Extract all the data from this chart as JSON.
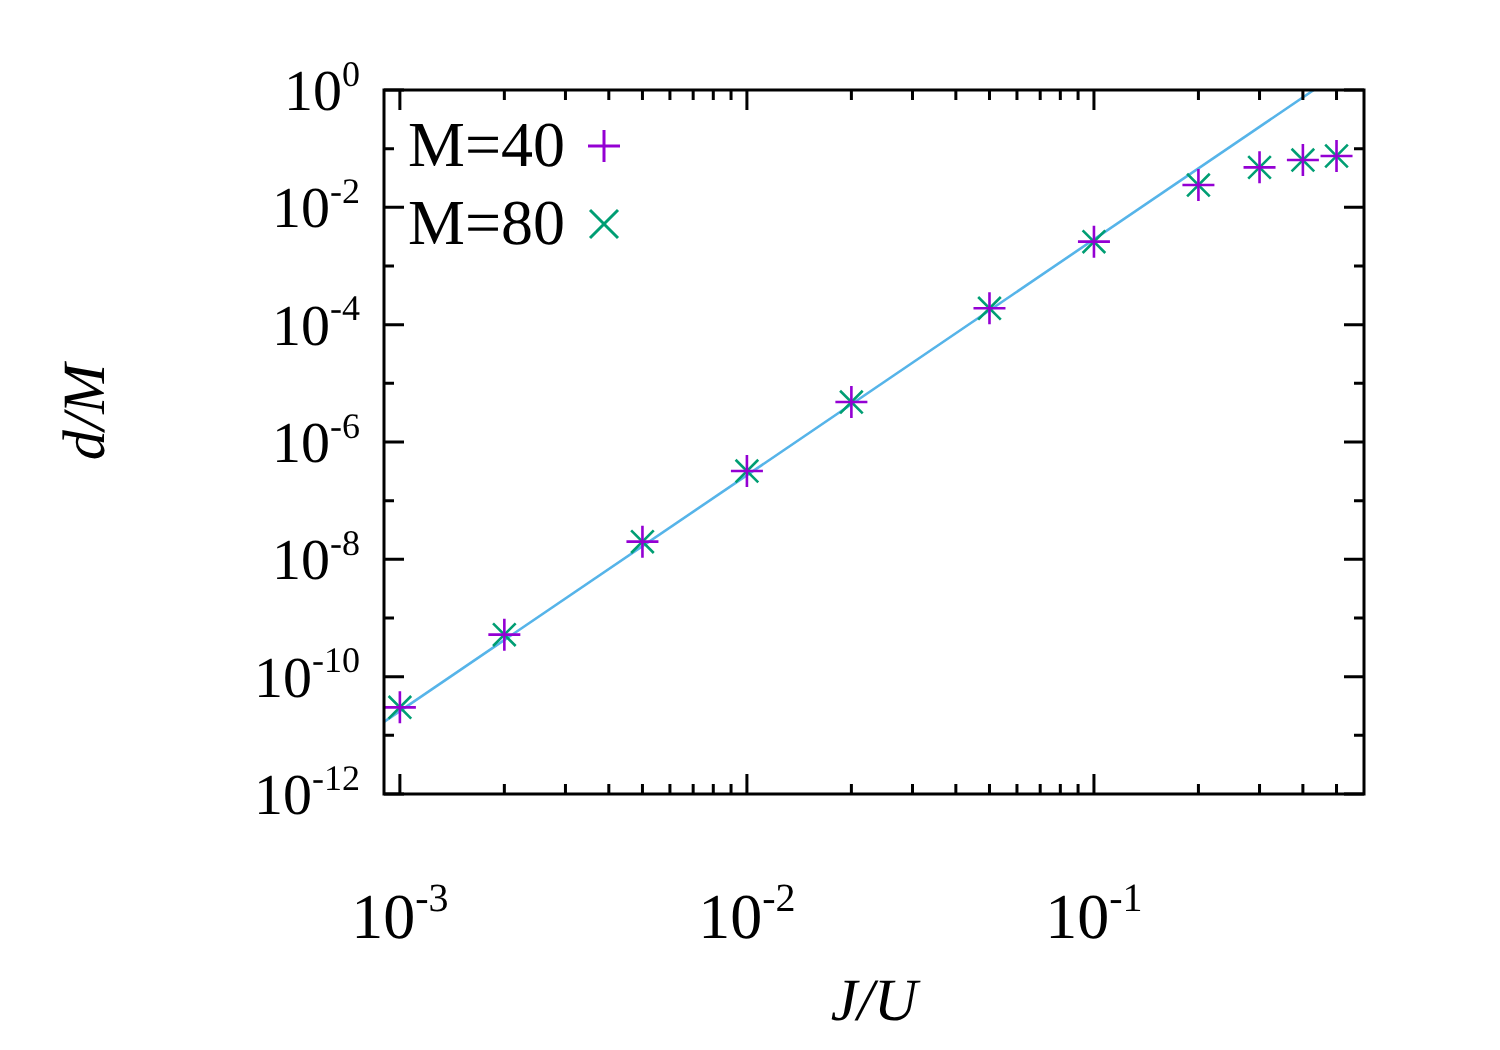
{
  "chart_data": {
    "type": "scatter",
    "xlabel": "J/U",
    "ylabel": "d/M",
    "log": "xy",
    "legend": "top left",
    "xlim": [
      0.0009,
      0.6
    ],
    "ylim": [
      1e-12,
      1
    ],
    "xticks": [
      {
        "value": 0.001,
        "label": "10$^{-3}$"
      },
      {
        "value": 0.002,
        "label": null
      },
      {
        "value": 0.003,
        "label": null
      },
      {
        "value": 0.004,
        "label": null
      },
      {
        "value": 0.005,
        "label": null
      },
      {
        "value": 0.006,
        "label": null
      },
      {
        "value": 0.007,
        "label": null
      },
      {
        "value": 0.008,
        "label": null
      },
      {
        "value": 0.009,
        "label": null
      },
      {
        "value": 0.01,
        "label": "10$^{-2}$"
      },
      {
        "value": 0.02,
        "label": null
      },
      {
        "value": 0.03,
        "label": null
      },
      {
        "value": 0.04,
        "label": null
      },
      {
        "value": 0.05,
        "label": null
      },
      {
        "value": 0.06,
        "label": null
      },
      {
        "value": 0.07,
        "label": null
      },
      {
        "value": 0.08,
        "label": null
      },
      {
        "value": 0.09,
        "label": null
      },
      {
        "value": 0.1,
        "label": "10$^{-1}$"
      },
      {
        "value": 0.2,
        "label": null
      },
      {
        "value": 0.3,
        "label": null
      },
      {
        "value": 0.4,
        "label": null
      },
      {
        "value": 0.5,
        "label": null
      }
    ],
    "yticks": [
      {
        "value": 1e-12,
        "label": "10$^{-12}$"
      },
      {
        "value": 1e-11,
        "label": null
      },
      {
        "value": 1e-10,
        "label": "10$^{-10}$"
      },
      {
        "value": 1e-09,
        "label": null
      },
      {
        "value": 1e-08,
        "label": "10$^{-8}$"
      },
      {
        "value": 1e-07,
        "label": null
      },
      {
        "value": 1e-06,
        "label": "10$^{-6}$"
      },
      {
        "value": 1e-05,
        "label": null
      },
      {
        "value": 0.0001,
        "label": "10$^{-4}$"
      },
      {
        "value": 0.001,
        "label": null
      },
      {
        "value": 0.01,
        "label": "10$^{-2}$"
      },
      {
        "value": 0.1,
        "label": null
      },
      {
        "value": 1,
        "label": "10$^{0}$"
      }
    ],
    "series": [
      {
        "name": "M=40",
        "type": "scatter",
        "marker": "cross",
        "color": "#9400d3",
        "x": [
          0.001,
          0.002,
          0.005,
          0.01,
          0.02,
          0.05,
          0.1,
          0.2,
          0.3,
          0.4,
          0.5
        ],
        "values": [
          3e-11,
          5.2e-10,
          2e-08,
          3.2e-07,
          4.8e-06,
          0.00019,
          0.0026,
          0.024,
          0.048,
          0.064,
          0.075
        ]
      },
      {
        "name": "M=80",
        "type": "scatter",
        "marker": "x",
        "color": "#009e73",
        "x": [
          0.001,
          0.002,
          0.005,
          0.01,
          0.02,
          0.05,
          0.1,
          0.2,
          0.3,
          0.4,
          0.5
        ],
        "values": [
          3e-11,
          5.2e-10,
          2e-08,
          3.2e-07,
          4.8e-06,
          0.00019,
          0.0026,
          0.024,
          0.048,
          0.064,
          0.075
        ]
      },
      {
        "type": "line",
        "marker": "none",
        "color": "#56b4e9",
        "x": [
          0.0009,
          0.43
        ],
        "values": [
          1.7e-11,
          1
        ]
      }
    ]
  }
}
